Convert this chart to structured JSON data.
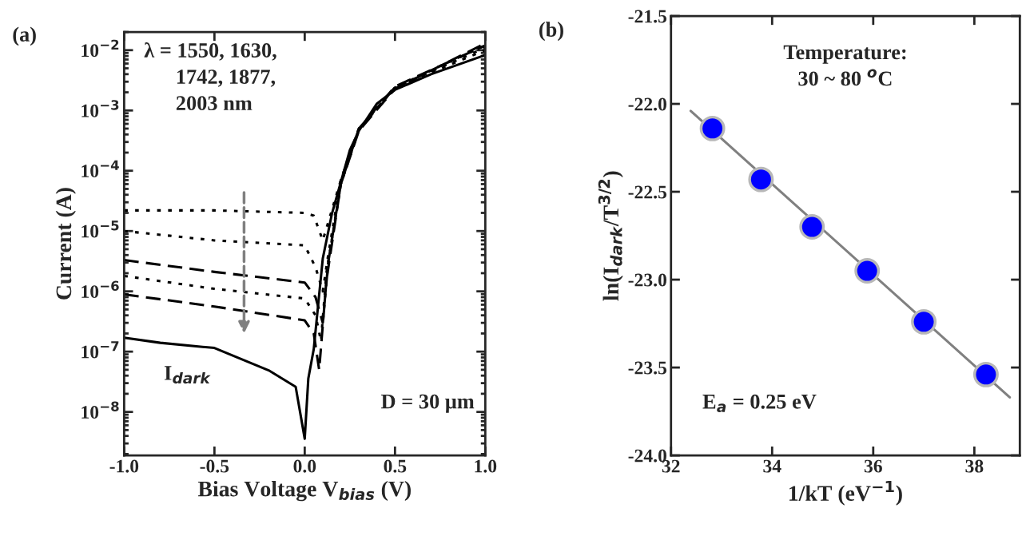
{
  "chart_data": [
    {
      "type": "line",
      "xlabel": "Bias Voltage V$_{bias}$ (V)",
      "ylabel": "Current (A)",
      "log": "y",
      "annotations": [
        "(a)",
        "λ = 1550, 1630,\n      1742, 1877,\n      2003 nm",
        "I$_{dark}$",
        "D = 30 μm"
      ],
      "xlim": [
        -1,
        1
      ],
      "xticks": [
        {
          "value": -1,
          "label": "-1.0"
        },
        {
          "value": -0.5,
          "label": "-0.5"
        },
        {
          "value": 0,
          "label": "0.0"
        },
        {
          "value": 0.5,
          "label": "0.5"
        },
        {
          "value": 1,
          "label": "1.0"
        }
      ],
      "ylim": [
        1.9e-09,
        0.02
      ],
      "yticks": [
        {
          "value": 1e-08,
          "label": "10$^{−8}$"
        },
        {
          "value": 1e-07,
          "label": "10$^{−7}$"
        },
        {
          "value": 1e-06,
          "label": "10$^{−6}$"
        },
        {
          "value": 1e-05,
          "label": "10$^{−5}$"
        },
        {
          "value": 0.0001,
          "label": "10$^{−4}$"
        },
        {
          "value": 0.001,
          "label": "10$^{−3}$"
        },
        {
          "value": 0.01,
          "label": "10$^{−2}$"
        }
      ],
      "grid": false,
      "legend": false,
      "series": [
        {
          "color": "#000000",
          "line_style": "solid",
          "x": [
            -1,
            -0.8,
            -0.5,
            -0.2,
            -0.05,
            0,
            0.02,
            0.05,
            0.1,
            0.15,
            0.2,
            0.25,
            0.3,
            0.4,
            0.5,
            0.7,
            1.0
          ],
          "values": [
            1.7e-07,
            1.4e-07,
            1.15e-07,
            4.9e-08,
            2.6e-08,
            3.6e-09,
            3.6e-08,
            1.1e-07,
            3.5e-06,
            1.9e-05,
            6.5e-05,
            0.00022,
            0.00046,
            0.0013,
            0.0022,
            0.004,
            0.0083
          ]
        },
        {
          "color": "#000000",
          "line_style": "dotted",
          "x": [
            -1,
            -0.5,
            0,
            0.05,
            0.1,
            0.15,
            0.2,
            0.3,
            0.5,
            1.0
          ],
          "values": [
            2.2e-05,
            2.2e-05,
            2e-05,
            1.8e-05,
            7e-06,
            2.2e-05,
            7e-05,
            0.0005,
            0.0024,
            0.01
          ]
        },
        {
          "color": "#000000",
          "line_style": "dotted",
          "x": [
            -1,
            -0.5,
            0,
            0.06,
            0.1,
            0.13,
            0.2,
            0.3,
            0.5,
            1.0
          ],
          "values": [
            1e-05,
            7e-06,
            5.8e-06,
            2.5e-06,
            1e-06,
            4e-06,
            7e-05,
            0.0005,
            0.0024,
            0.011
          ]
        },
        {
          "color": "#000000",
          "line_style": "dashed",
          "x": [
            -1,
            -0.5,
            0,
            0.06,
            0.1,
            0.13,
            0.2,
            0.3,
            0.5,
            1.0
          ],
          "values": [
            3.3e-06,
            2.1e-06,
            1.4e-06,
            8e-07,
            3e-07,
            3e-06,
            6e-05,
            0.0005,
            0.0025,
            0.012
          ]
        },
        {
          "color": "#000000",
          "line_style": "dotted",
          "x": [
            -1,
            -0.5,
            0,
            0.06,
            0.09,
            0.12,
            0.2,
            0.3,
            0.5,
            1.0
          ],
          "values": [
            1.8e-06,
            1.1e-06,
            7.6e-07,
            4e-07,
            1.5e-07,
            2e-06,
            6e-05,
            0.00048,
            0.0024,
            0.012
          ]
        },
        {
          "color": "#000000",
          "line_style": "dashed",
          "x": [
            -1,
            -0.5,
            0,
            0.05,
            0.08,
            0.12,
            0.2,
            0.3,
            0.5,
            1.0
          ],
          "values": [
            8.9e-07,
            5.6e-07,
            3.3e-07,
            2e-07,
            5e-08,
            1.5e-06,
            6e-05,
            0.00046,
            0.0023,
            0.013
          ]
        }
      ]
    },
    {
      "type": "scatter",
      "xlabel": "1/kT (eV$^{−1}$)",
      "ylabel": "ln(I$_{dark}$/T$^{3/2}$)",
      "annotations": [
        "(b)",
        "Temperature:\n30 ~ 80 $^{o}$C",
        "E$_{a}$ = 0.25 eV"
      ],
      "xlim": [
        32,
        38.9
      ],
      "xticks": [
        32,
        34,
        36,
        38
      ],
      "ylim": [
        -24,
        -21.5
      ],
      "yticks": [
        {
          "value": -24,
          "label": "-24.0"
        },
        {
          "value": -23.5,
          "label": "-23.5"
        },
        {
          "value": -23,
          "label": "-23.0"
        },
        {
          "value": -22.5,
          "label": "-22.5"
        },
        {
          "value": -22,
          "label": "-22.0"
        },
        {
          "value": -21.5,
          "label": "-21.5"
        }
      ],
      "grid": false,
      "legend": false,
      "series": [
        {
          "type": "line",
          "color": "#808080",
          "line_style": "solid",
          "x": [
            32.39,
            38.7
          ],
          "values": [
            -22.04,
            -23.67
          ]
        },
        {
          "type": "scatter",
          "color": "#0000ff",
          "marker": "circle",
          "x": [
            32.82,
            33.78,
            34.79,
            35.88,
            37.0,
            38.23
          ],
          "values": [
            -22.14,
            -22.43,
            -22.7,
            -22.95,
            -23.24,
            -23.54
          ]
        }
      ]
    }
  ]
}
